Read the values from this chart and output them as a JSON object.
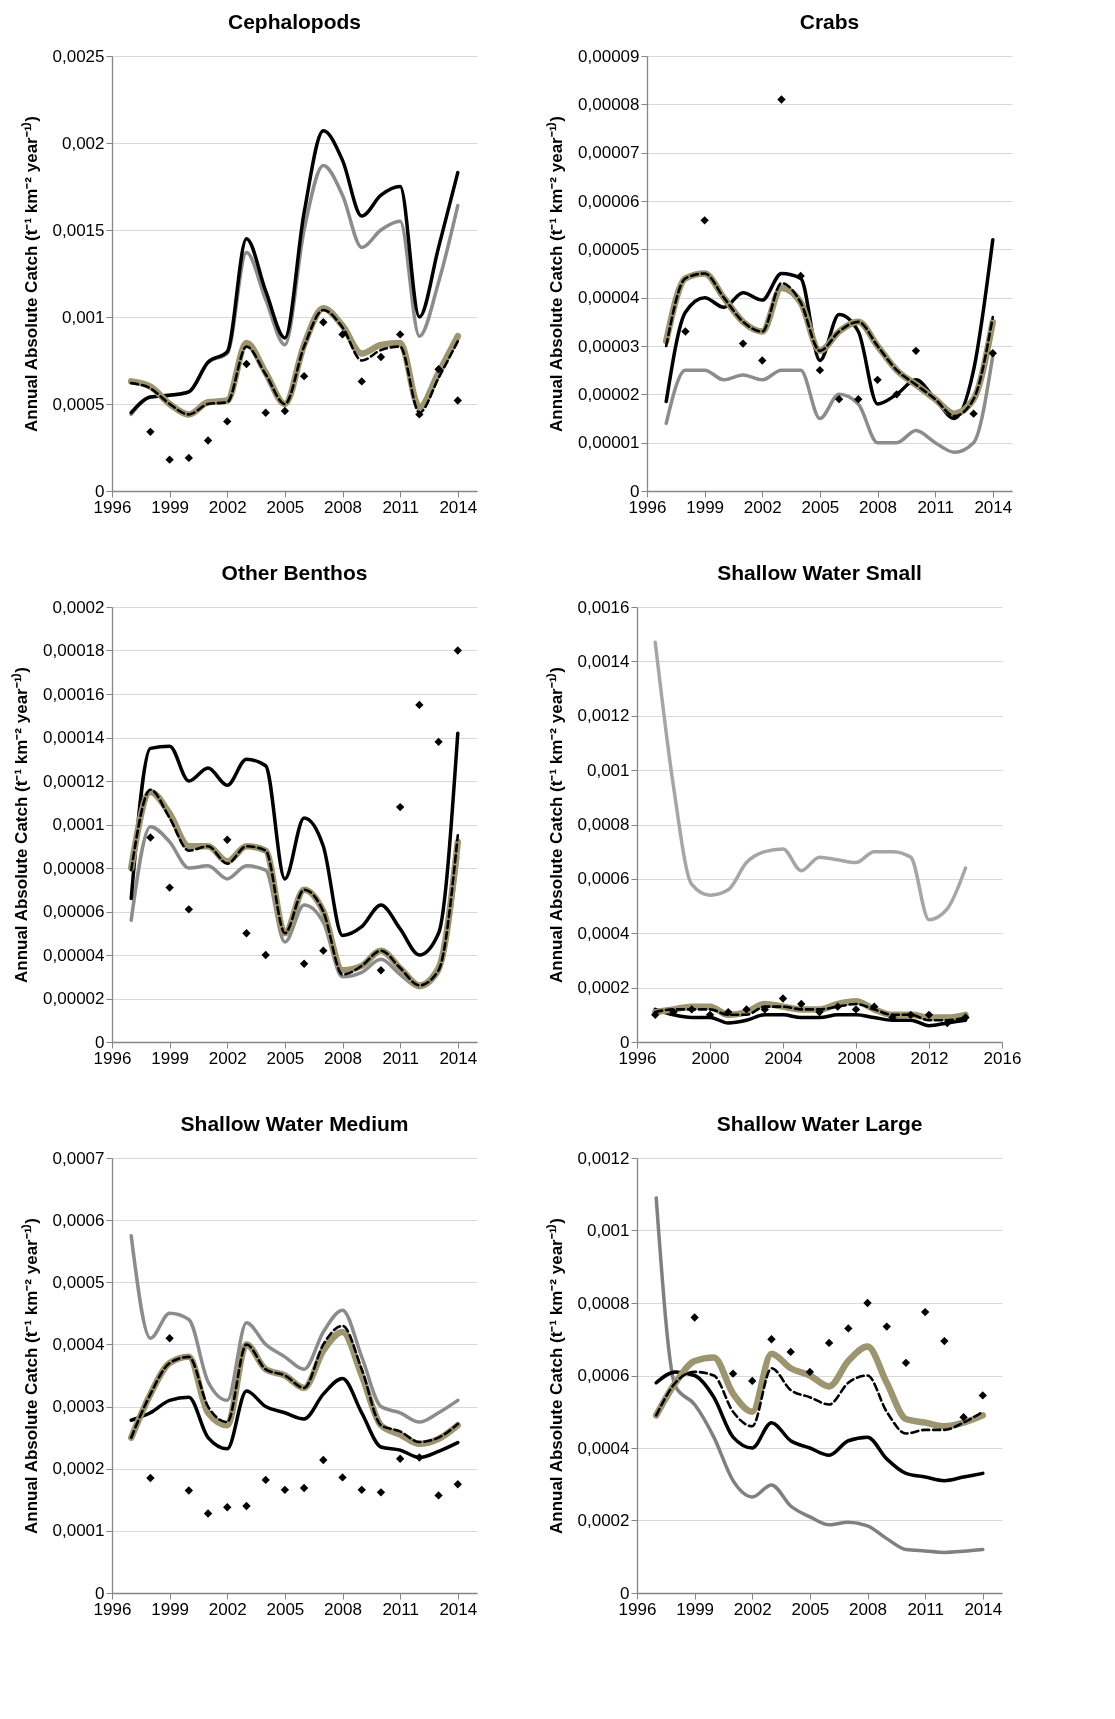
{
  "chart_data": [
    {
      "type": "line",
      "title": "Cephalopods",
      "ylabel": "Annual Absolute Catch (t⁻¹ km⁻² year⁻¹⁾)",
      "grid": "y",
      "x": [
        1997,
        1998,
        1999,
        2000,
        2001,
        2002,
        2003,
        2004,
        2005,
        2006,
        2007,
        2008,
        2009,
        2010,
        2011,
        2012,
        2013,
        2014
      ],
      "xlim": [
        1996,
        2015
      ],
      "xticks": [
        1996,
        1999,
        2002,
        2005,
        2008,
        2011,
        2014
      ],
      "ylim": [
        0,
        0.0025
      ],
      "yticks": [
        {
          "value": 0,
          "label": "0"
        },
        {
          "value": 0.0005,
          "label": "0,0005"
        },
        {
          "value": 0.001,
          "label": "0,001"
        },
        {
          "value": 0.0015,
          "label": "0,0015"
        },
        {
          "value": 0.002,
          "label": "0,002"
        },
        {
          "value": 0.0025,
          "label": "0,0025"
        }
      ],
      "series": [
        {
          "type": "line",
          "color": "#8c8c8c",
          "line_style": "solid",
          "values": [
            0.00044,
            0.00054,
            0.00055,
            0.00057,
            0.00074,
            0.00079,
            0.00137,
            0.0011,
            0.00084,
            0.0015,
            0.00187,
            0.0017,
            0.0014,
            0.0015,
            0.00155,
            0.00089,
            0.0012,
            0.00164
          ]
        },
        {
          "type": "line",
          "color": "#000000",
          "line_style": "solid",
          "values": [
            0.00045,
            0.00054,
            0.00055,
            0.00057,
            0.00074,
            0.0008,
            0.00145,
            0.00115,
            0.00088,
            0.0016,
            0.00207,
            0.0019,
            0.00158,
            0.0017,
            0.00175,
            0.001,
            0.0014,
            0.00183
          ]
        },
        {
          "type": "line",
          "color": "#9d9470",
          "line_style": "solid",
          "values": [
            0.00063,
            0.0006,
            0.0005,
            0.00044,
            0.00051,
            0.00052,
            0.00085,
            0.00068,
            0.0005,
            0.00084,
            0.00105,
            0.00095,
            0.00079,
            0.00084,
            0.00085,
            0.00048,
            0.00068,
            0.00089
          ]
        },
        {
          "type": "line",
          "color": "#000000",
          "line_style": "dashed",
          "values": [
            0.00062,
            0.00059,
            0.0005,
            0.00044,
            0.0005,
            0.00051,
            0.00083,
            0.00067,
            0.0005,
            0.00083,
            0.00104,
            0.00094,
            0.00075,
            0.00081,
            0.00083,
            0.00045,
            0.00065,
            0.00086
          ]
        },
        {
          "type": "scatter",
          "color": "#000000",
          "marker": "diamond",
          "values": [
            null,
            0.00034,
            0.00018,
            0.00019,
            0.00029,
            0.0004,
            0.00073,
            0.00045,
            0.00046,
            0.00066,
            0.00097,
            0.0009,
            0.00063,
            0.00077,
            0.0009,
            0.00044,
            0.0007,
            0.00052
          ]
        }
      ]
    },
    {
      "type": "line",
      "title": "Crabs",
      "ylabel": "Annual Absolute Catch (t⁻¹ km⁻² year⁻¹⁾)",
      "grid": "y",
      "x": [
        1997,
        1998,
        1999,
        2000,
        2001,
        2002,
        2003,
        2004,
        2005,
        2006,
        2007,
        2008,
        2009,
        2010,
        2011,
        2012,
        2013,
        2014
      ],
      "xlim": [
        1996,
        2015
      ],
      "xticks": [
        1996,
        1999,
        2002,
        2005,
        2008,
        2011,
        2014
      ],
      "ylim": [
        0,
        9e-05
      ],
      "yticks": [
        {
          "value": 0,
          "label": "0"
        },
        {
          "value": 1e-05,
          "label": "0,00001"
        },
        {
          "value": 2e-05,
          "label": "0,00002"
        },
        {
          "value": 3e-05,
          "label": "0,00003"
        },
        {
          "value": 4e-05,
          "label": "0,00004"
        },
        {
          "value": 5e-05,
          "label": "0,00005"
        },
        {
          "value": 6e-05,
          "label": "0,00006"
        },
        {
          "value": 7e-05,
          "label": "0,00007"
        },
        {
          "value": 8e-05,
          "label": "0,00008"
        },
        {
          "value": 9e-05,
          "label": "0,00009"
        }
      ],
      "series": [
        {
          "type": "line",
          "color": "#8c8c8c",
          "line_style": "solid",
          "values": [
            1.4e-05,
            2.5e-05,
            2.5e-05,
            2.3e-05,
            2.4e-05,
            2.3e-05,
            2.5e-05,
            2.5e-05,
            1.5e-05,
            2e-05,
            1.8e-05,
            1e-05,
            1e-05,
            1.25e-05,
            1e-05,
            8e-06,
            1e-05,
            2.8e-05
          ]
        },
        {
          "type": "line",
          "color": "#000000",
          "line_style": "solid",
          "values": [
            1.85e-05,
            3.7e-05,
            4e-05,
            3.8e-05,
            4.1e-05,
            3.95e-05,
            4.5e-05,
            4.4e-05,
            2.7e-05,
            3.65e-05,
            3.3e-05,
            1.8e-05,
            2e-05,
            2.3e-05,
            1.9e-05,
            1.5e-05,
            2.5e-05,
            5.2e-05
          ]
        },
        {
          "type": "line",
          "color": "#9d9470",
          "line_style": "solid",
          "values": [
            3.1e-05,
            4.4e-05,
            4.5e-05,
            4e-05,
            3.5e-05,
            3.3e-05,
            4.2e-05,
            3.9e-05,
            2.9e-05,
            3.3e-05,
            3.5e-05,
            3e-05,
            2.5e-05,
            2.2e-05,
            1.9e-05,
            1.6e-05,
            1.9e-05,
            3.5e-05
          ]
        },
        {
          "type": "line",
          "color": "#000000",
          "line_style": "dashed",
          "values": [
            3e-05,
            4.4e-05,
            4.5e-05,
            4e-05,
            3.5e-05,
            3.3e-05,
            4.3e-05,
            3.9e-05,
            2.9e-05,
            3.3e-05,
            3.5e-05,
            3e-05,
            2.5e-05,
            2.2e-05,
            1.9e-05,
            1.55e-05,
            1.9e-05,
            3.6e-05
          ]
        },
        {
          "type": "scatter",
          "color": "#000000",
          "marker": "diamond",
          "values": [
            null,
            3.3e-05,
            5.6e-05,
            null,
            3.05e-05,
            2.7e-05,
            8.1e-05,
            4.45e-05,
            2.5e-05,
            1.9e-05,
            1.9e-05,
            2.3e-05,
            2e-05,
            2.9e-05,
            null,
            null,
            1.6e-05,
            2.85e-05
          ]
        }
      ]
    },
    {
      "type": "line",
      "title": "Other Benthos",
      "ylabel": "Annual Absolute Catch (t⁻¹ km⁻² year⁻¹⁾)",
      "grid": "y",
      "x": [
        1997,
        1998,
        1999,
        2000,
        2001,
        2002,
        2003,
        2004,
        2005,
        2006,
        2007,
        2008,
        2009,
        2010,
        2011,
        2012,
        2013,
        2014
      ],
      "xlim": [
        1996,
        2015
      ],
      "xticks": [
        1996,
        1999,
        2002,
        2005,
        2008,
        2011,
        2014
      ],
      "ylim": [
        0,
        0.0002
      ],
      "yticks": [
        {
          "value": 0,
          "label": "0"
        },
        {
          "value": 2e-05,
          "label": "0,00002"
        },
        {
          "value": 4e-05,
          "label": "0,00004"
        },
        {
          "value": 6e-05,
          "label": "0,00006"
        },
        {
          "value": 8e-05,
          "label": "0,00008"
        },
        {
          "value": 0.0001,
          "label": "0,0001"
        },
        {
          "value": 0.00012,
          "label": "0,00012"
        },
        {
          "value": 0.00014,
          "label": "0,00014"
        },
        {
          "value": 0.00016,
          "label": "0,00016"
        },
        {
          "value": 0.00018,
          "label": "0,00018"
        },
        {
          "value": 0.0002,
          "label": "0,0002"
        }
      ],
      "series": [
        {
          "type": "line",
          "color": "#8c8c8c",
          "line_style": "solid",
          "values": [
            5.6e-05,
            9.9e-05,
            9.2e-05,
            8e-05,
            8.1e-05,
            7.5e-05,
            8.1e-05,
            7.9e-05,
            4.6e-05,
            6.3e-05,
            5.5e-05,
            3e-05,
            3.2e-05,
            3.8e-05,
            3.1e-05,
            2.5e-05,
            3.2e-05,
            8.5e-05
          ]
        },
        {
          "type": "line",
          "color": "#000000",
          "line_style": "solid",
          "values": [
            6.6e-05,
            0.000135,
            0.000136,
            0.00012,
            0.000126,
            0.000118,
            0.00013,
            0.000127,
            7.5e-05,
            0.000103,
            9e-05,
            4.9e-05,
            5.3e-05,
            6.3e-05,
            5.2e-05,
            4e-05,
            5e-05,
            0.000142
          ]
        },
        {
          "type": "line",
          "color": "#9d9470",
          "line_style": "solid",
          "values": [
            8e-05,
            0.000115,
            0.000105,
            9e-05,
            9e-05,
            8.3e-05,
            9e-05,
            8.8e-05,
            5e-05,
            7e-05,
            6e-05,
            3.3e-05,
            3.5e-05,
            4.2e-05,
            3.4e-05,
            2.6e-05,
            3.4e-05,
            9.2e-05
          ]
        },
        {
          "type": "line",
          "color": "#000000",
          "line_style": "dashed",
          "values": [
            7.9e-05,
            0.000116,
            0.000103,
            8.8e-05,
            9e-05,
            8.2e-05,
            9e-05,
            8.8e-05,
            5e-05,
            7e-05,
            6e-05,
            3.1e-05,
            3.5e-05,
            4.2e-05,
            3.4e-05,
            2.6e-05,
            3.3e-05,
            9.5e-05
          ]
        },
        {
          "type": "scatter",
          "color": "#000000",
          "marker": "diamond",
          "values": [
            null,
            9.4e-05,
            7.1e-05,
            6.1e-05,
            null,
            9.3e-05,
            5e-05,
            4e-05,
            null,
            3.6e-05,
            4.2e-05,
            null,
            null,
            3.3e-05,
            0.000108,
            0.000155,
            0.000138,
            0.00018
          ]
        }
      ]
    },
    {
      "type": "line",
      "title": "Shallow Water Small",
      "ylabel": "Annual Absolute Catch (t⁻¹ km⁻² year⁻¹⁾)",
      "grid": "y",
      "x": [
        1997,
        1998,
        1999,
        2000,
        2001,
        2002,
        2003,
        2004,
        2005,
        2006,
        2007,
        2008,
        2009,
        2010,
        2011,
        2012,
        2013,
        2014
      ],
      "xlim": [
        1996,
        2016
      ],
      "xticks": [
        1996,
        2000,
        2004,
        2008,
        2012,
        2016
      ],
      "ylim": [
        0,
        0.0016
      ],
      "yticks": [
        {
          "value": 0,
          "label": "0"
        },
        {
          "value": 0.0002,
          "label": "0,0002"
        },
        {
          "value": 0.0004,
          "label": "0,0004"
        },
        {
          "value": 0.0006,
          "label": "0,0006"
        },
        {
          "value": 0.0008,
          "label": "0,0008"
        },
        {
          "value": 0.001,
          "label": "0,001"
        },
        {
          "value": 0.0012,
          "label": "0,0012"
        },
        {
          "value": 0.0014,
          "label": "0,0014"
        },
        {
          "value": 0.0016,
          "label": "0,0016"
        }
      ],
      "series": [
        {
          "type": "line",
          "color": "#a6a6a6",
          "line_style": "solid",
          "values": [
            0.00147,
            0.00094,
            0.00058,
            0.00054,
            0.00056,
            0.00066,
            0.0007,
            0.00071,
            0.00063,
            0.00068,
            0.00067,
            0.00066,
            0.0007,
            0.0007,
            0.00068,
            0.00045,
            0.00049,
            0.00064
          ]
        },
        {
          "type": "line",
          "color": "#000000",
          "line_style": "solid",
          "values": [
            0.00012,
            0.0001,
            9e-05,
            9e-05,
            7e-05,
            8e-05,
            0.0001,
            0.0001,
            9e-05,
            9e-05,
            0.0001,
            0.0001,
            9e-05,
            8e-05,
            8e-05,
            6e-05,
            7e-05,
            8e-05
          ]
        },
        {
          "type": "line",
          "color": "#9d9470",
          "line_style": "solid",
          "values": [
            0.00011,
            0.00012,
            0.00013,
            0.00013,
            0.0001,
            0.00011,
            0.00014,
            0.00013,
            0.00012,
            0.00012,
            0.00014,
            0.00015,
            0.00012,
            0.0001,
            0.0001,
            9e-05,
            9e-05,
            0.0001
          ]
        },
        {
          "type": "line",
          "color": "#000000",
          "line_style": "dashed",
          "values": [
            0.00011,
            0.00012,
            0.00012,
            0.00012,
            0.0001,
            0.0001,
            0.00013,
            0.00013,
            0.00012,
            0.00012,
            0.00013,
            0.00014,
            0.00012,
            0.0001,
            0.0001,
            8e-05,
            8e-05,
            9e-05
          ]
        },
        {
          "type": "scatter",
          "color": "#000000",
          "marker": "diamond",
          "values": [
            0.0001,
            0.00011,
            0.00012,
            0.0001,
            0.00011,
            0.00012,
            0.00012,
            0.00016,
            0.00014,
            0.00011,
            0.00013,
            0.00012,
            0.00013,
            9e-05,
            0.0001,
            0.0001,
            7e-05,
            9e-05
          ]
        }
      ]
    },
    {
      "type": "line",
      "title": "Shallow Water Medium",
      "ylabel": "Annual Absolute Catch (t⁻¹ km⁻² year⁻¹⁾)",
      "grid": "y",
      "x": [
        1997,
        1998,
        1999,
        2000,
        2001,
        2002,
        2003,
        2004,
        2005,
        2006,
        2007,
        2008,
        2009,
        2010,
        2011,
        2012,
        2013,
        2014
      ],
      "xlim": [
        1996,
        2015
      ],
      "xticks": [
        1996,
        1999,
        2002,
        2005,
        2008,
        2011,
        2014
      ],
      "ylim": [
        0,
        0.0007
      ],
      "yticks": [
        {
          "value": 0,
          "label": "0"
        },
        {
          "value": 0.0001,
          "label": "0,0001"
        },
        {
          "value": 0.0002,
          "label": "0,0002"
        },
        {
          "value": 0.0003,
          "label": "0,0003"
        },
        {
          "value": 0.0004,
          "label": "0,0004"
        },
        {
          "value": 0.0005,
          "label": "0,0005"
        },
        {
          "value": 0.0006,
          "label": "0,0006"
        },
        {
          "value": 0.0007,
          "label": "0,0007"
        }
      ],
      "series": [
        {
          "type": "line",
          "color": "#8c8c8c",
          "line_style": "solid",
          "values": [
            0.000575,
            0.00041,
            0.00045,
            0.00044,
            0.00034,
            0.00031,
            0.000435,
            0.0004,
            0.00038,
            0.00036,
            0.00042,
            0.000455,
            0.00038,
            0.0003,
            0.00029,
            0.000275,
            0.00029,
            0.00031
          ]
        },
        {
          "type": "line",
          "color": "#000000",
          "line_style": "solid",
          "values": [
            0.000278,
            0.00029,
            0.00031,
            0.000315,
            0.00025,
            0.000232,
            0.000325,
            0.0003,
            0.00029,
            0.00028,
            0.00032,
            0.000345,
            0.00029,
            0.000235,
            0.00023,
            0.000218,
            0.000228,
            0.000242
          ]
        },
        {
          "type": "line",
          "color": "#9d9470",
          "line_style": "solid",
          "values": [
            0.00025,
            0.00032,
            0.00037,
            0.00038,
            0.00029,
            0.00027,
            0.0004,
            0.00036,
            0.00035,
            0.00033,
            0.00039,
            0.00042,
            0.00035,
            0.00027,
            0.000255,
            0.00024,
            0.000248,
            0.00027
          ]
        },
        {
          "type": "line",
          "color": "#000000",
          "line_style": "dashed",
          "values": [
            0.00025,
            0.00032,
            0.00037,
            0.00038,
            0.0003,
            0.000275,
            0.0004,
            0.00036,
            0.00035,
            0.00033,
            0.0004,
            0.00043,
            0.00036,
            0.00027,
            0.00026,
            0.000243,
            0.00025,
            0.000272
          ]
        },
        {
          "type": "scatter",
          "color": "#000000",
          "marker": "diamond",
          "values": [
            null,
            0.000185,
            0.00041,
            0.000165,
            0.000128,
            0.000138,
            0.00014,
            0.000182,
            0.000166,
            0.000169,
            0.000214,
            0.000186,
            0.000166,
            0.000162,
            0.000216,
            0.000218,
            0.000157,
            0.000175
          ]
        }
      ]
    },
    {
      "type": "line",
      "title": "Shallow Water Large",
      "ylabel": "Annual Absolute Catch (t⁻¹ km⁻² year⁻¹⁾)",
      "grid": "y",
      "x": [
        1997,
        1998,
        1999,
        2000,
        2001,
        2002,
        2003,
        2004,
        2005,
        2006,
        2007,
        2008,
        2009,
        2010,
        2011,
        2012,
        2013,
        2014
      ],
      "xlim": [
        1996,
        2015
      ],
      "xticks": [
        1996,
        1999,
        2002,
        2005,
        2008,
        2011,
        2014
      ],
      "ylim": [
        0,
        0.0012
      ],
      "yticks": [
        {
          "value": 0,
          "label": "0"
        },
        {
          "value": 0.0002,
          "label": "0,0002"
        },
        {
          "value": 0.0004,
          "label": "0,0004"
        },
        {
          "value": 0.0006,
          "label": "0,0006"
        },
        {
          "value": 0.0008,
          "label": "0,0008"
        },
        {
          "value": 0.001,
          "label": "0,001"
        },
        {
          "value": 0.0012,
          "label": "0,0012"
        }
      ],
      "series": [
        {
          "type": "line",
          "color": "#808080",
          "line_style": "solid",
          "values": [
            0.00109,
            0.00057,
            0.00052,
            0.00043,
            0.00031,
            0.000265,
            0.000298,
            0.00024,
            0.00021,
            0.000188,
            0.000195,
            0.000185,
            0.00015,
            0.00012,
            0.000116,
            0.000112,
            0.000115,
            0.00012
          ]
        },
        {
          "type": "line",
          "color": "#000000",
          "line_style": "solid",
          "values": [
            0.00058,
            0.00061,
            0.0006,
            0.00054,
            0.00043,
            0.0004,
            0.00047,
            0.00042,
            0.0004,
            0.00038,
            0.00042,
            0.00043,
            0.00037,
            0.00033,
            0.00032,
            0.00031,
            0.00032,
            0.00033
          ]
        },
        {
          "type": "line",
          "color": "#9d9470",
          "line_style": "solid",
          "values": [
            0.00049,
            0.00058,
            0.00064,
            0.00065,
            0.00055,
            0.0005,
            0.00066,
            0.00062,
            0.0006,
            0.00057,
            0.00064,
            0.00068,
            0.00058,
            0.00048,
            0.00047,
            0.00046,
            0.00047,
            0.00049
          ]
        },
        {
          "type": "line",
          "color": "#000000",
          "line_style": "dashed",
          "values": [
            0.00049,
            0.00058,
            0.00061,
            0.0006,
            0.0005,
            0.00046,
            0.00062,
            0.00056,
            0.00054,
            0.00052,
            0.00058,
            0.0006,
            0.0005,
            0.00044,
            0.00045,
            0.00045,
            0.00047,
            0.0005
          ]
        },
        {
          "type": "scatter",
          "color": "#000000",
          "marker": "diamond",
          "values": [
            null,
            null,
            0.00076,
            null,
            0.000605,
            0.000585,
            0.0007,
            0.000665,
            0.00061,
            0.00069,
            0.00073,
            0.0008,
            0.000735,
            0.000635,
            0.000775,
            0.000695,
            0.000485,
            0.000545
          ]
        }
      ]
    }
  ]
}
